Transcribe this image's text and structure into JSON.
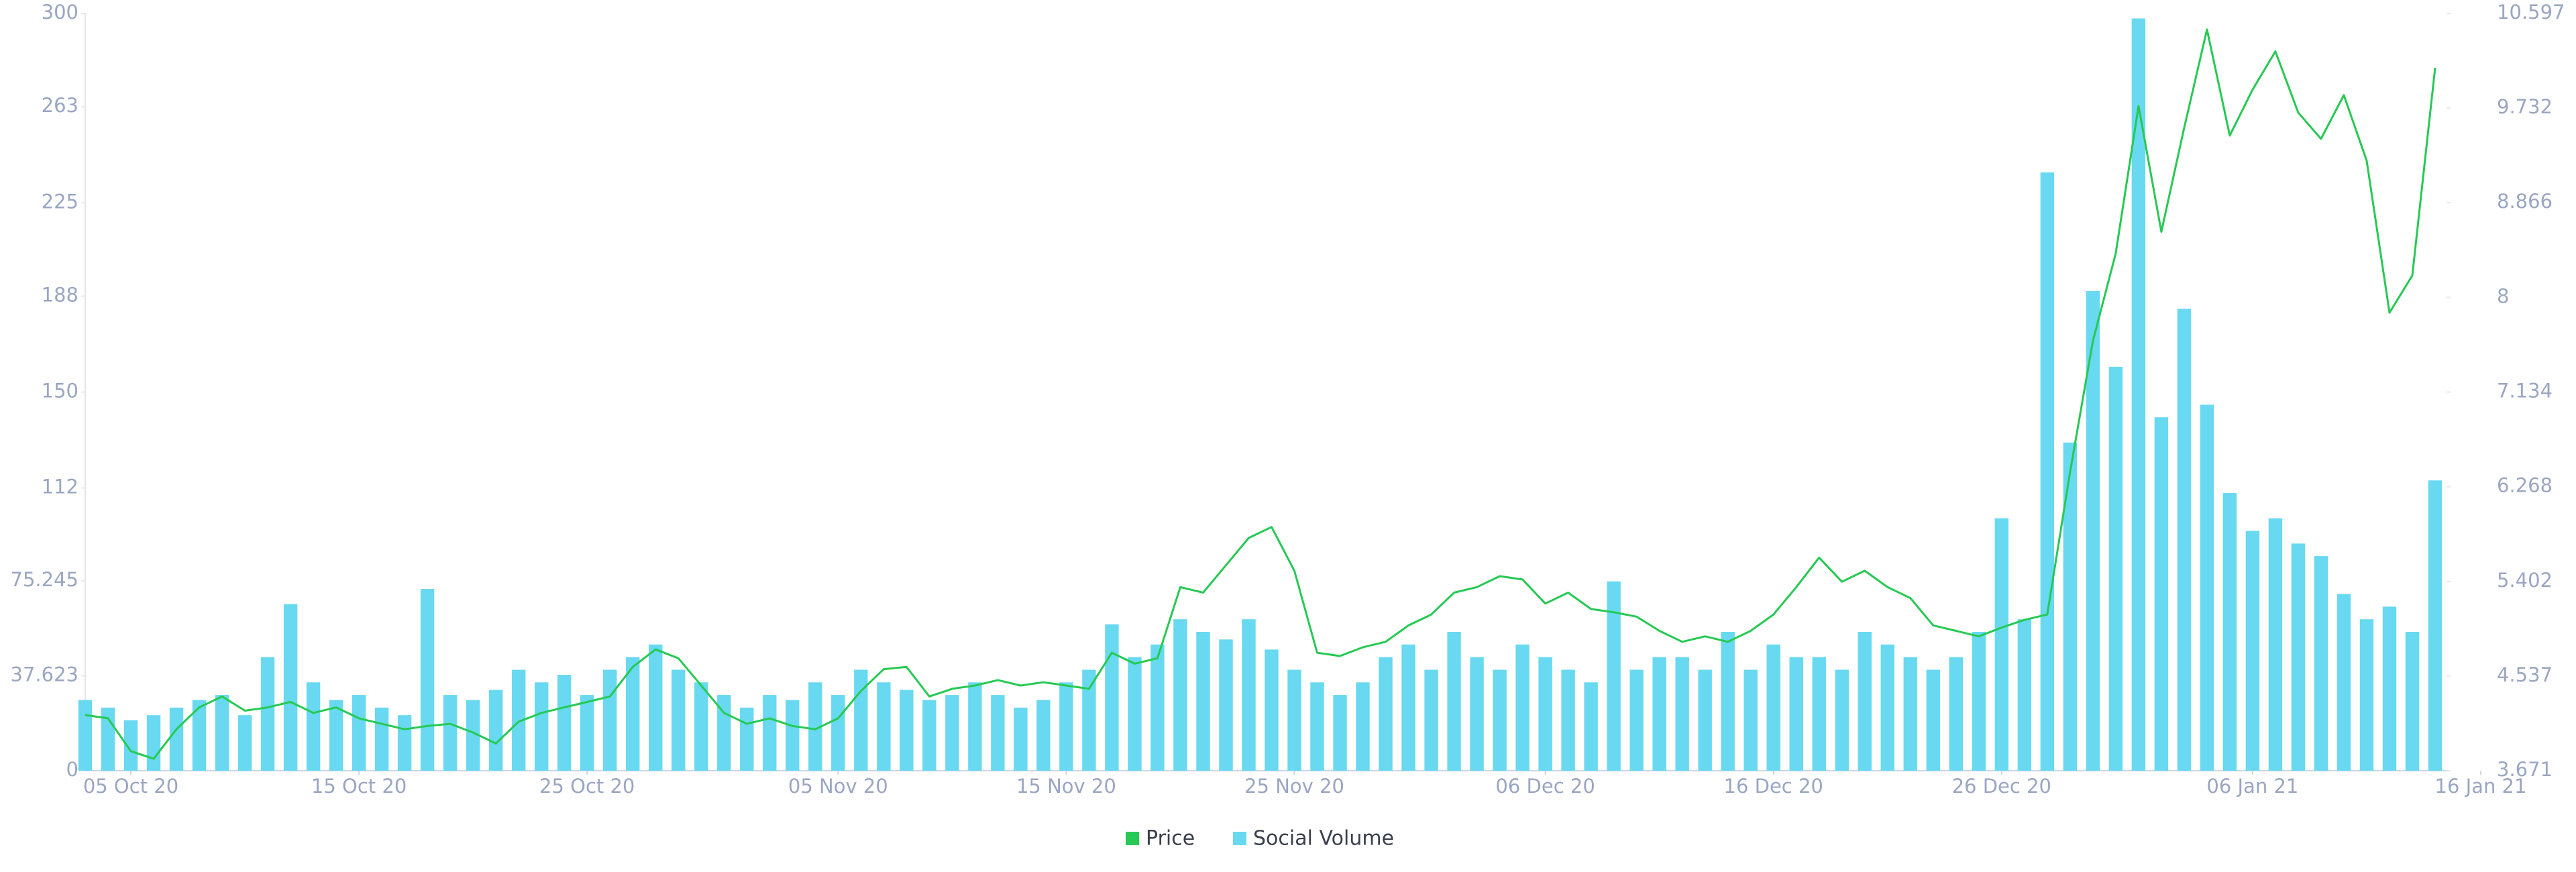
{
  "chart_data": {
    "type": "combo",
    "x": [
      "2020-10-03",
      "2020-10-04",
      "2020-10-05",
      "2020-10-06",
      "2020-10-07",
      "2020-10-08",
      "2020-10-09",
      "2020-10-10",
      "2020-10-11",
      "2020-10-12",
      "2020-10-13",
      "2020-10-14",
      "2020-10-15",
      "2020-10-16",
      "2020-10-17",
      "2020-10-18",
      "2020-10-19",
      "2020-10-20",
      "2020-10-21",
      "2020-10-22",
      "2020-10-23",
      "2020-10-24",
      "2020-10-25",
      "2020-10-26",
      "2020-10-27",
      "2020-10-28",
      "2020-10-29",
      "2020-10-30",
      "2020-10-31",
      "2020-11-01",
      "2020-11-02",
      "2020-11-03",
      "2020-11-04",
      "2020-11-05",
      "2020-11-06",
      "2020-11-07",
      "2020-11-08",
      "2020-11-09",
      "2020-11-10",
      "2020-11-11",
      "2020-11-12",
      "2020-11-13",
      "2020-11-14",
      "2020-11-15",
      "2020-11-16",
      "2020-11-17",
      "2020-11-18",
      "2020-11-19",
      "2020-11-20",
      "2020-11-21",
      "2020-11-22",
      "2020-11-23",
      "2020-11-24",
      "2020-11-25",
      "2020-11-26",
      "2020-11-27",
      "2020-11-28",
      "2020-11-29",
      "2020-11-30",
      "2020-12-01",
      "2020-12-02",
      "2020-12-03",
      "2020-12-04",
      "2020-12-05",
      "2020-12-06",
      "2020-12-07",
      "2020-12-08",
      "2020-12-09",
      "2020-12-10",
      "2020-12-11",
      "2020-12-12",
      "2020-12-13",
      "2020-12-14",
      "2020-12-15",
      "2020-12-16",
      "2020-12-17",
      "2020-12-18",
      "2020-12-19",
      "2020-12-20",
      "2020-12-21",
      "2020-12-22",
      "2020-12-23",
      "2020-12-24",
      "2020-12-25",
      "2020-12-26",
      "2020-12-27",
      "2020-12-28",
      "2020-12-29",
      "2020-12-30",
      "2020-12-31",
      "2021-01-01",
      "2021-01-02",
      "2021-01-03",
      "2021-01-04",
      "2021-01-05",
      "2021-01-06",
      "2021-01-07",
      "2021-01-08",
      "2021-01-09",
      "2021-01-10",
      "2021-01-11",
      "2021-01-12",
      "2021-01-13",
      "2021-01-14"
    ],
    "series": [
      {
        "name": "Price",
        "color": "#26c953",
        "type": "line",
        "axis": "y2",
        "values": [
          4.18,
          4.15,
          3.85,
          3.78,
          4.05,
          4.25,
          4.35,
          4.22,
          4.25,
          4.3,
          4.2,
          4.25,
          4.15,
          4.1,
          4.05,
          4.08,
          4.1,
          4.02,
          3.92,
          4.12,
          4.2,
          4.25,
          4.3,
          4.35,
          4.62,
          4.78,
          4.7,
          4.45,
          4.2,
          4.1,
          4.15,
          4.08,
          4.05,
          4.15,
          4.4,
          4.6,
          4.62,
          4.35,
          4.42,
          4.45,
          4.5,
          4.45,
          4.48,
          4.45,
          4.42,
          4.75,
          4.65,
          4.7,
          5.35,
          5.3,
          5.55,
          5.8,
          5.9,
          5.5,
          4.75,
          4.72,
          4.8,
          4.85,
          5.0,
          5.1,
          5.3,
          5.35,
          5.45,
          5.42,
          5.2,
          5.3,
          5.15,
          5.12,
          5.08,
          4.95,
          4.85,
          4.9,
          4.85,
          4.95,
          5.1,
          5.35,
          5.62,
          5.4,
          5.5,
          5.35,
          5.25,
          5.0,
          4.95,
          4.9,
          4.98,
          5.05,
          5.1,
          6.4,
          7.6,
          8.4,
          9.75,
          8.6,
          9.55,
          10.45,
          9.48,
          9.9,
          10.25,
          9.69,
          9.45,
          9.85,
          9.25,
          7.86,
          8.2,
          10.1
        ]
      },
      {
        "name": "Social Volume",
        "color": "#68d9f0",
        "type": "bar",
        "values": [
          28,
          25,
          20,
          22,
          25,
          28,
          30,
          22,
          45,
          66,
          35,
          28,
          30,
          25,
          22,
          72,
          30,
          28,
          32,
          40,
          35,
          38,
          30,
          40,
          45,
          50,
          40,
          35,
          30,
          25,
          30,
          28,
          35,
          30,
          40,
          35,
          32,
          28,
          30,
          35,
          30,
          25,
          28,
          35,
          40,
          58,
          45,
          50,
          60,
          55,
          52,
          60,
          48,
          40,
          35,
          30,
          35,
          45,
          50,
          40,
          55,
          45,
          40,
          50,
          45,
          40,
          35,
          75,
          40,
          45,
          45,
          40,
          55,
          40,
          50,
          45,
          45,
          40,
          55,
          50,
          45,
          40,
          45,
          55,
          100,
          60,
          237,
          130,
          190,
          160,
          298,
          140,
          183,
          145,
          110,
          95,
          100,
          90,
          85,
          70,
          60,
          65,
          55,
          115
        ]
      }
    ],
    "xlim": [
      "2020-10-03",
      "2021-01-16"
    ],
    "xticks": [
      {
        "value": "2020-10-05",
        "label": "05 Oct 20"
      },
      {
        "value": "2020-10-15",
        "label": "15 Oct 20"
      },
      {
        "value": "2020-10-25",
        "label": "25 Oct 20"
      },
      {
        "value": "2020-11-05",
        "label": "05 Nov 20"
      },
      {
        "value": "2020-11-15",
        "label": "15 Nov 20"
      },
      {
        "value": "2020-11-25",
        "label": "25 Nov 20"
      },
      {
        "value": "2020-12-06",
        "label": "06 Dec 20"
      },
      {
        "value": "2020-12-16",
        "label": "16 Dec 20"
      },
      {
        "value": "2020-12-26",
        "label": "26 Dec 20"
      },
      {
        "value": "2021-01-06",
        "label": "06 Jan 21"
      },
      {
        "value": "2021-01-16",
        "label": "16 Jan 21"
      }
    ],
    "ylim": [
      0,
      300
    ],
    "yticks": [
      0,
      37.623,
      75.245,
      112,
      150,
      188,
      225,
      263,
      300
    ],
    "y2lim": [
      3.671,
      10.597
    ],
    "y2ticks": [
      3.671,
      4.537,
      5.402,
      6.268,
      7.134,
      8,
      8.866,
      9.732,
      10.597
    ],
    "legend": "bottom"
  }
}
